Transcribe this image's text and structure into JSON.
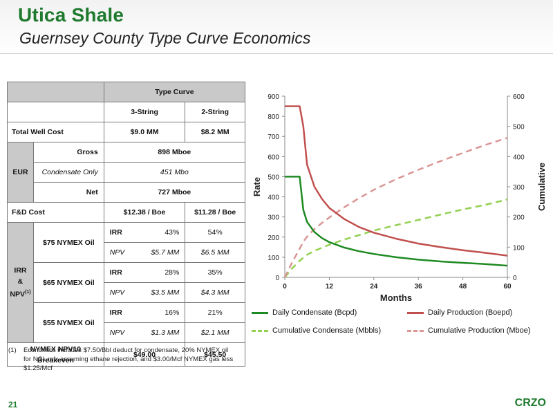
{
  "header": {
    "title": "Utica Shale",
    "subtitle": "Guernsey County Type Curve Economics"
  },
  "table": {
    "type_curve_header": "Type Curve",
    "col_3string": "3-String",
    "col_2string": "2-String",
    "total_well_cost": {
      "label": "Total Well Cost",
      "v3": "$9.0 MM",
      "v2": "$8.2 MM"
    },
    "eur": {
      "label": "EUR",
      "gross": {
        "label": "Gross",
        "value": "898 Mboe"
      },
      "condensate": {
        "label": "Condensate Only",
        "value": "451 Mbo"
      },
      "net": {
        "label": "Net",
        "value": "727 Mboe"
      }
    },
    "fd_cost": {
      "label": "F&D Cost",
      "v3": "$12.38 / Boe",
      "v2": "$11.28 / Boe"
    },
    "irr_npv_label": {
      "irr": "IRR",
      "amp": "&",
      "npv": "NPV",
      "sup": "(1)"
    },
    "scenarios": [
      {
        "label": "$75 NYMEX Oil",
        "irr_label": "IRR",
        "irr3": "43%",
        "irr2": "54%",
        "npv_label": "NPV",
        "npv3": "$5.7 MM",
        "npv2": "$6.5 MM"
      },
      {
        "label": "$65 NYMEX Oil",
        "irr_label": "IRR",
        "irr3": "28%",
        "irr2": "35%",
        "npv_label": "NPV",
        "npv3": "$3.5 MM",
        "npv2": "$4.3 MM"
      },
      {
        "label": "$55 NYMEX Oil",
        "irr_label": "IRR",
        "irr3": "16%",
        "irr2": "21%",
        "npv_label": "NPV",
        "npv3": "$1.3 MM",
        "npv2": "$2.1 MM"
      }
    ],
    "breakeven": {
      "label1": "NYMEX NPV10",
      "label2": "Breakeven",
      "v3": "$49.00",
      "v2": "$45.50"
    }
  },
  "footnote": {
    "num": "(1)",
    "text": "Economics includes $7.50/Bbl deduct for condensate, 20% NYMEX oil for NGL mix assuming ethane rejection, and $3.00/Mcf NYMEX gas less $1.25/Mcf"
  },
  "footer": {
    "page_number": "21",
    "logo": "CRZO"
  },
  "chart_data": {
    "type": "line",
    "xlabel": "Months",
    "ylabel": "Rate",
    "y2label": "Cumulative",
    "xlim": [
      0,
      60
    ],
    "ylim": [
      0,
      900
    ],
    "y2lim": [
      0,
      600
    ],
    "xticks": [
      "0",
      "12",
      "24",
      "36",
      "48",
      "60"
    ],
    "yticks": [
      "0",
      "100",
      "200",
      "300",
      "400",
      "500",
      "600",
      "700",
      "800",
      "900"
    ],
    "y2ticks": [
      "0",
      "100",
      "200",
      "300",
      "400",
      "500",
      "600"
    ],
    "x": [
      0,
      2,
      4,
      5,
      6,
      8,
      10,
      12,
      16,
      20,
      24,
      30,
      36,
      42,
      48,
      54,
      60
    ],
    "series": [
      {
        "name": "Daily Condensate (Bcpd)",
        "axis": "left",
        "color": "#1e8a22",
        "dash": false,
        "values": [
          500,
          500,
          500,
          335,
          275,
          225,
          195,
          175,
          148,
          130,
          116,
          100,
          88,
          79,
          72,
          66,
          58
        ]
      },
      {
        "name": "Daily Production (Boepd)",
        "axis": "left",
        "color": "#c0504d",
        "dash": false,
        "values": [
          850,
          850,
          850,
          750,
          560,
          450,
          390,
          345,
          290,
          250,
          222,
          192,
          168,
          150,
          135,
          122,
          108
        ]
      },
      {
        "name": "Cumulative Condensate (Mbbls)",
        "axis": "right",
        "color": "#92d050",
        "dash": true,
        "values": [
          0,
          30,
          55,
          65,
          75,
          88,
          98,
          108,
          125,
          140,
          155,
          173,
          190,
          208,
          225,
          240,
          258
        ]
      },
      {
        "name": "Cumulative Production (Mboe)",
        "axis": "right",
        "color": "#d99694",
        "dash": true,
        "values": [
          0,
          50,
          95,
          118,
          135,
          160,
          180,
          198,
          232,
          262,
          290,
          325,
          356,
          385,
          412,
          438,
          462
        ]
      }
    ],
    "legend": "bottom",
    "grid": false
  }
}
